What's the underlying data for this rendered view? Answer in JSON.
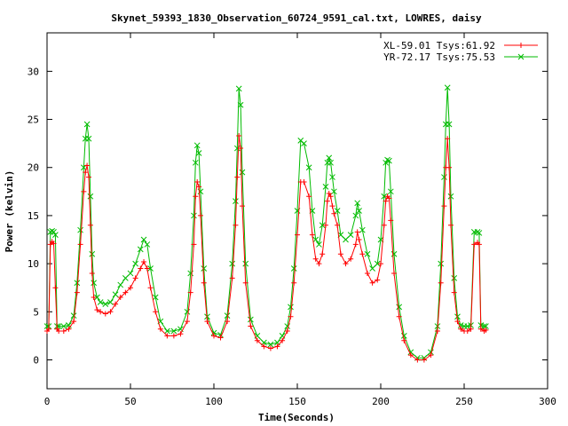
{
  "chart_data": {
    "type": "line",
    "title": "Skynet_59393_1830_Observation_60724_9591_cal.txt, LOWRES, daisy",
    "xlabel": "Time(Seconds)",
    "ylabel": "Power (kelvin)",
    "xlim": [
      0,
      300
    ],
    "ylim": [
      -3,
      34
    ],
    "xticks": [
      0,
      50,
      100,
      150,
      200,
      250,
      300
    ],
    "yticks": [
      0,
      5,
      10,
      15,
      20,
      25,
      30
    ],
    "grid": false,
    "legend_position": "top-right",
    "series": [
      {
        "name": "XL-59.01 Tsys:61.92",
        "color": "#ff0000",
        "marker": "plus",
        "x": [
          0,
          1,
          2,
          3,
          4,
          5,
          6,
          7,
          10,
          13,
          16,
          18,
          20,
          22,
          23,
          24,
          25,
          26,
          27,
          28,
          30,
          32,
          35,
          38,
          41,
          44,
          47,
          50,
          53,
          56,
          58,
          60,
          62,
          65,
          68,
          72,
          76,
          80,
          84,
          86,
          88,
          89,
          90,
          91,
          92,
          94,
          96,
          100,
          104,
          108,
          111,
          113,
          114,
          115,
          116,
          117,
          119,
          122,
          126,
          130,
          134,
          138,
          141,
          144,
          146,
          148,
          150,
          152,
          154,
          157,
          159,
          161,
          163,
          165,
          167,
          168,
          169,
          170,
          171,
          172,
          174,
          176,
          179,
          182,
          185,
          186,
          187,
          189,
          192,
          195,
          198,
          200,
          202,
          203,
          204,
          205,
          206,
          208,
          211,
          214,
          218,
          222,
          226,
          230,
          234,
          236,
          238,
          239,
          240,
          241,
          242,
          244,
          246,
          248,
          250,
          252,
          254,
          256,
          258,
          259,
          260,
          262,
          263
        ],
        "values": [
          3.0,
          3.2,
          12.0,
          12.3,
          12.1,
          7.5,
          3.2,
          3.0,
          3.0,
          3.2,
          4.0,
          7.0,
          12.0,
          17.5,
          19.5,
          20.2,
          19.0,
          14.0,
          9.0,
          6.5,
          5.2,
          5.0,
          4.8,
          5.0,
          5.8,
          6.5,
          7.0,
          7.5,
          8.5,
          9.5,
          10.2,
          9.5,
          7.5,
          5.0,
          3.2,
          2.5,
          2.5,
          2.7,
          4.0,
          7.0,
          12.0,
          17.0,
          18.5,
          18.0,
          15.0,
          8.0,
          4.0,
          2.5,
          2.3,
          4.0,
          8.5,
          14.0,
          19.0,
          23.3,
          22.0,
          16.0,
          8.0,
          3.5,
          2.0,
          1.4,
          1.2,
          1.4,
          2.0,
          3.0,
          4.5,
          8.0,
          13.0,
          18.5,
          18.5,
          17.0,
          13.0,
          10.5,
          10.0,
          11.0,
          14.0,
          16.5,
          17.3,
          17.0,
          16.0,
          15.2,
          14.0,
          11.0,
          10.0,
          10.5,
          12.0,
          13.3,
          12.5,
          11.0,
          9.0,
          8.0,
          8.3,
          10.0,
          14.0,
          16.5,
          17.0,
          16.8,
          14.5,
          9.0,
          4.5,
          2.0,
          0.5,
          0.0,
          0.0,
          0.5,
          3.0,
          8.0,
          16.0,
          20.0,
          23.0,
          20.0,
          14.0,
          7.0,
          4.0,
          3.2,
          3.0,
          3.0,
          3.2,
          12.0,
          12.2,
          12.0,
          3.2,
          3.0,
          3.1
        ]
      },
      {
        "name": "YR-72.17 Tsys:75.53",
        "color": "#00bb00",
        "marker": "cross",
        "x": [
          0,
          1,
          2,
          3,
          4,
          5,
          6,
          7,
          10,
          13,
          16,
          18,
          20,
          22,
          23,
          24,
          25,
          26,
          27,
          28,
          30,
          32,
          35,
          38,
          41,
          44,
          47,
          50,
          53,
          56,
          58,
          60,
          62,
          65,
          68,
          72,
          76,
          80,
          84,
          86,
          88,
          89,
          90,
          91,
          92,
          94,
          96,
          100,
          104,
          108,
          111,
          113,
          114,
          115,
          116,
          117,
          119,
          122,
          126,
          130,
          134,
          138,
          141,
          144,
          146,
          148,
          150,
          152,
          154,
          157,
          159,
          161,
          163,
          165,
          167,
          168,
          169,
          170,
          171,
          172,
          174,
          176,
          179,
          182,
          185,
          186,
          187,
          189,
          192,
          195,
          198,
          200,
          202,
          203,
          204,
          205,
          206,
          208,
          211,
          214,
          218,
          222,
          226,
          230,
          234,
          236,
          238,
          239,
          240,
          241,
          242,
          244,
          246,
          248,
          250,
          252,
          254,
          256,
          258,
          259,
          260,
          262,
          263
        ],
        "values": [
          3.5,
          3.5,
          13.3,
          13.4,
          13.3,
          13.0,
          3.5,
          3.5,
          3.5,
          3.6,
          4.6,
          8.0,
          13.5,
          20.0,
          23.0,
          24.5,
          23.0,
          17.0,
          11.0,
          8.0,
          6.5,
          6.0,
          5.8,
          6.0,
          6.8,
          7.8,
          8.5,
          9.0,
          10.0,
          11.5,
          12.5,
          12.0,
          9.5,
          6.5,
          4.0,
          3.0,
          3.0,
          3.2,
          5.0,
          9.0,
          15.0,
          20.5,
          22.3,
          21.5,
          17.5,
          9.5,
          4.5,
          2.8,
          2.6,
          4.6,
          10.0,
          16.5,
          22.0,
          28.2,
          26.5,
          19.5,
          10.0,
          4.2,
          2.5,
          1.8,
          1.6,
          1.8,
          2.5,
          3.5,
          5.5,
          9.5,
          15.5,
          22.8,
          22.5,
          20.0,
          15.5,
          12.5,
          12.0,
          14.0,
          18.0,
          20.5,
          21.0,
          20.5,
          19.0,
          17.5,
          15.5,
          13.0,
          12.5,
          13.0,
          15.0,
          16.3,
          15.5,
          13.5,
          11.0,
          9.5,
          10.0,
          12.5,
          17.0,
          20.5,
          20.8,
          20.7,
          17.5,
          11.0,
          5.5,
          2.5,
          0.8,
          0.2,
          0.2,
          0.8,
          3.5,
          10.0,
          19.0,
          24.5,
          28.3,
          24.5,
          17.0,
          8.5,
          4.5,
          3.6,
          3.5,
          3.5,
          3.6,
          13.3,
          13.3,
          13.2,
          3.6,
          3.5,
          3.5
        ]
      }
    ]
  }
}
